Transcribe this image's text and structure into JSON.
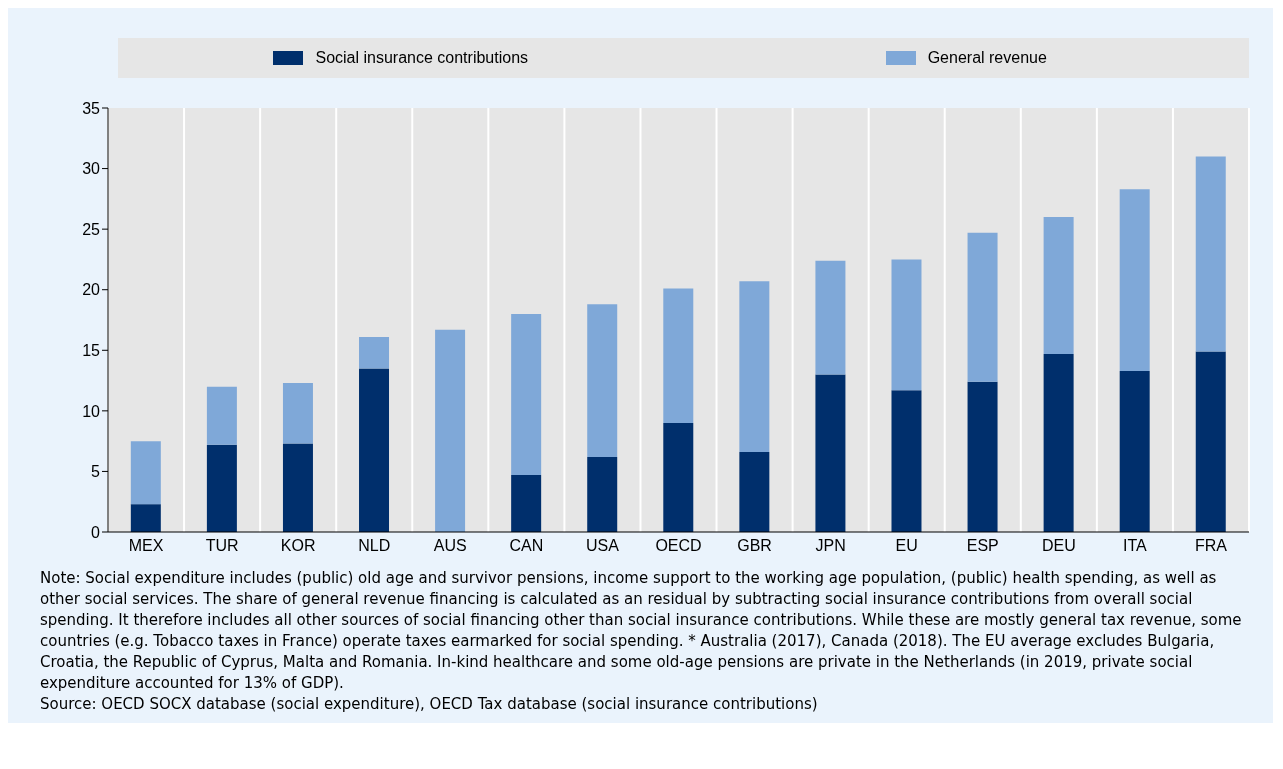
{
  "chart_data": {
    "type": "bar",
    "stacked": true,
    "categories": [
      "MEX",
      "TUR",
      "KOR",
      "NLD",
      "AUS",
      "CAN",
      "USA",
      "OECD",
      "GBR",
      "JPN",
      "EU",
      "ESP",
      "DEU",
      "ITA",
      "FRA"
    ],
    "series": [
      {
        "name": "Social insurance contributions",
        "color": "#002f6c",
        "values": [
          2.3,
          7.2,
          7.3,
          13.5,
          0,
          4.7,
          6.2,
          9.0,
          6.6,
          13.0,
          11.7,
          12.4,
          14.7,
          13.3,
          14.9
        ]
      },
      {
        "name": "General revenue",
        "color": "#7fa8d8",
        "values": [
          5.2,
          4.8,
          5.0,
          2.6,
          16.7,
          13.3,
          12.6,
          11.1,
          14.1,
          9.4,
          10.8,
          12.3,
          11.3,
          15.0,
          16.1
        ]
      }
    ],
    "ylim": [
      0,
      35
    ],
    "yticks": [
      0,
      5,
      10,
      15,
      20,
      25,
      30,
      35
    ],
    "grid": "x",
    "legend": "top",
    "annotations": [
      "Note: Social expenditure includes (public) old age and survivor pensions, income support to the working age population, (public) health spending, as well as other social services. The share of general revenue financing is calculated as an residual by subtracting social insurance contributions from overall social spending. It therefore includes all other sources of social financing other than social insurance contributions. While these are mostly general tax revenue, some countries (e.g. Tobacco taxes in France) operate taxes earmarked for social spending. * Australia (2017), Canada (2018). The EU average excludes Bulgaria, Croatia, the Republic of Cyprus, Malta and Romania. In-kind healthcare and some old-age pensions are private in the Netherlands (in 2019, private social expenditure accounted for 13% of GDP).",
      "Source: OECD SOCX database (social expenditure), OECD Tax database (social insurance contributions)"
    ]
  }
}
